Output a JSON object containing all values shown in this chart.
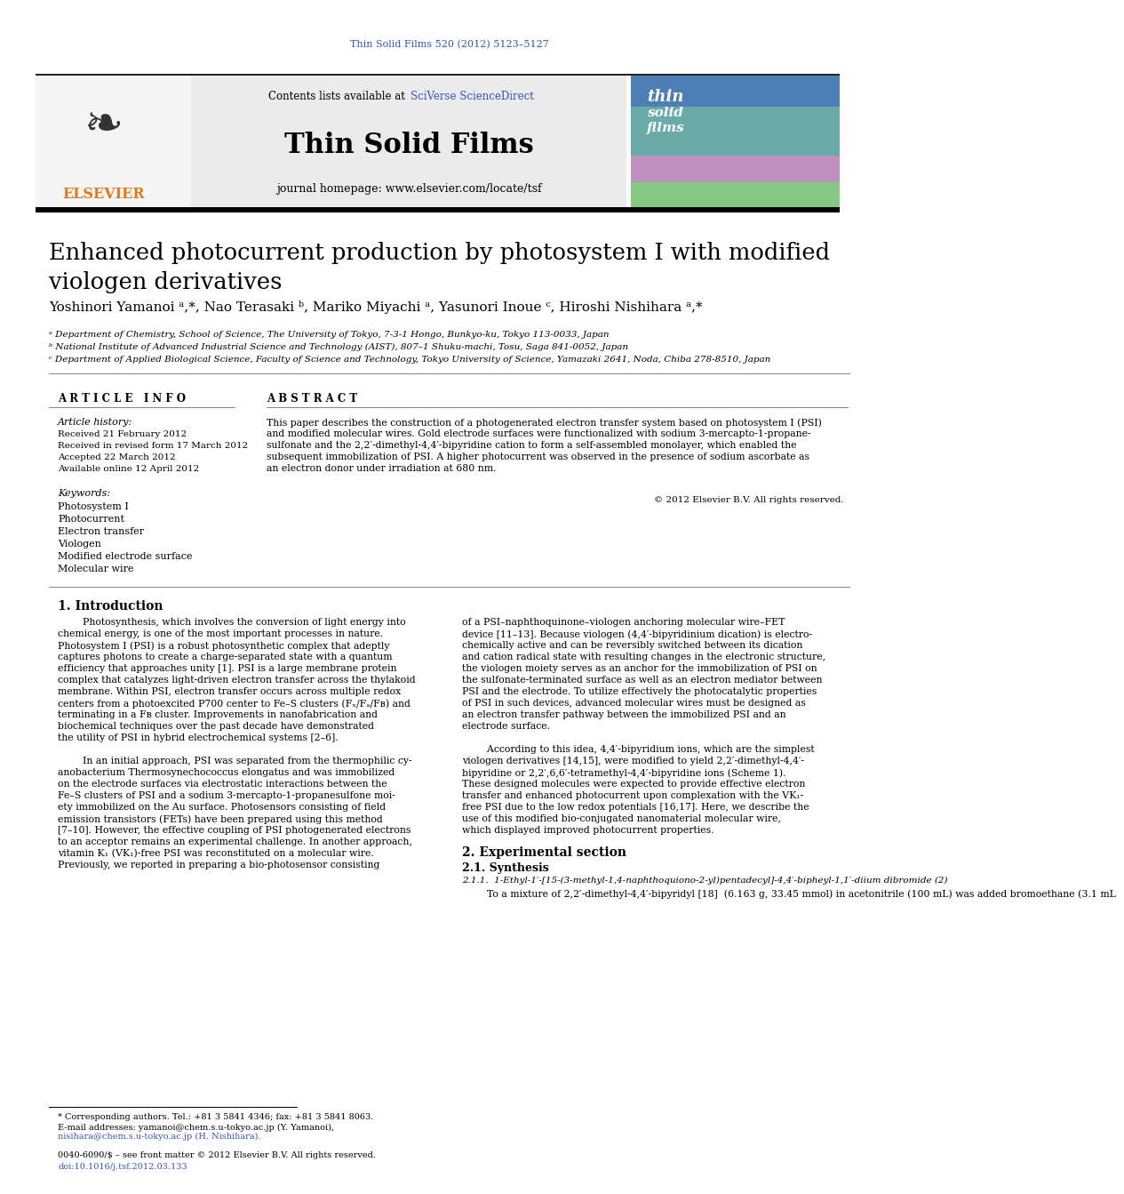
{
  "page_title": "Thin Solid Films 520 (2012) 5123–5127",
  "journal_name": "Thin Solid Films",
  "contents_line": "Contents lists available at SciVerse ScienceDirect",
  "homepage": "journal homepage: www.elsevier.com/locate/tsf",
  "elsevier_text": "ELSEVIER",
  "article_title": "Enhanced photocurrent production by photosystem I with modified\nviologen derivatives",
  "authors": "Yoshinori Yamanoi ᵃ,*, Nao Terasaki ᵇ, Mariko Miyachi ᵃ, Yasunori Inoue ᶜ, Hiroshi Nishihara ᵃ,*",
  "affil_a": "ᵃ Department of Chemistry, School of Science, The University of Tokyo, 7-3-1 Hongo, Bunkyo-ku, Tokyo 113-0033, Japan",
  "affil_b": "ᵇ National Institute of Advanced Industrial Science and Technology (AIST), 807–1 Shuku-machi, Tosu, Saga 841-0052, Japan",
  "affil_c": "ᶜ Department of Applied Biological Science, Faculty of Science and Technology, Tokyo University of Science, Yamazaki 2641, Noda, Chiba 278-8510, Japan",
  "section_article_info": "A R T I C L E   I N F O",
  "section_abstract": "A B S T R A C T",
  "article_history_label": "Article history:",
  "received": "Received 21 February 2012",
  "revised": "Received in revised form 17 March 2012",
  "accepted": "Accepted 22 March 2012",
  "available": "Available online 12 April 2012",
  "keywords_label": "Keywords:",
  "keywords": [
    "Photosystem I",
    "Photocurrent",
    "Electron transfer",
    "Viologen",
    "Modified electrode surface",
    "Molecular wire"
  ],
  "abstract_copyright": "© 2012 Elsevier B.V. All rights reserved.",
  "intro_heading": "1. Introduction",
  "exp_heading": "2. Experimental section",
  "synth_heading": "2.1. Synthesis",
  "synth_subheading": "2.1.1.  1-Ethyl-1′-[15-(3-methyl-1,4-naphthoquiono-2-yl)pentadecyl]-4,4′-bipheyl-1,1′-diium dibromide (2)",
  "synth_text": "        To a mixture of 2,2′-dimethyl-4,4′-bipyridyl [18]  (6.163 g, 33.45 mmol) in acetonitrile (100 mL) was added bromoethane (3.1 mL",
  "footnote_star": "* Corresponding authors. Tel.: +81 3 5841 4346; fax: +81 3 5841 8063.",
  "footnote_email1": "E-mail addresses: yamanoi@chem.s.u-tokyo.ac.jp (Y. Yamanoi),",
  "footnote_email2": "nisihara@chem.s.u-tokyo.ac.jp (H. Nishihara).",
  "footer_issn": "0040-6090/$ – see front matter © 2012 Elsevier B.V. All rights reserved.",
  "footer_doi": "doi:10.1016/j.tsf.2012.03.133",
  "bg_color": "#ffffff",
  "header_bg": "#e8e8e8",
  "blue_color": "#3355bb",
  "orange_color": "#e07820",
  "dark_line": "#222222",
  "gray_line": "#888888",
  "intro_left_lines": [
    "        Photosynthesis, which involves the conversion of light energy into",
    "chemical energy, is one of the most important processes in nature.",
    "Photosystem I (PSI) is a robust photosynthetic complex that adeptly",
    "captures photons to create a charge-separated state with a quantum",
    "efficiency that approaches unity [1]. PSI is a large membrane protein",
    "complex that catalyzes light-driven electron transfer across the thylakoid",
    "membrane. Within PSI, electron transfer occurs across multiple redox",
    "centers from a photoexcited P700 center to Fe–S clusters (Fₓ/Fₐ/Fʙ) and",
    "terminating in a Fʙ cluster. Improvements in nanofabrication and",
    "biochemical techniques over the past decade have demonstrated",
    "the utility of PSI in hybrid electrochemical systems [2–6].",
    "",
    "        In an initial approach, PSI was separated from the thermophilic cy-",
    "anobacterium Thermosynechococcus elongatus and was immobilized",
    "on the electrode surfaces via electrostatic interactions between the",
    "Fe–S clusters of PSI and a sodium 3-mercapto-1-propanesulfone moi-",
    "ety immobilized on the Au surface. Photosensors consisting of field",
    "emission transistors (FETs) have been prepared using this method",
    "[7–10]. However, the effective coupling of PSI photogenerated electrons",
    "to an acceptor remains an experimental challenge. In another approach,",
    "vitamin K₁ (VK₁)-free PSI was reconstituted on a molecular wire.",
    "Previously, we reported in preparing a bio-photosensor consisting"
  ],
  "intro_right_lines": [
    "of a PSI–naphthoquinone–viologen anchoring molecular wire–FET",
    "device [11–13]. Because viologen (4,4′-bipyridinium dication) is electro-",
    "chemically active and can be reversibly switched between its dication",
    "and cation radical state with resulting changes in the electronic structure,",
    "the viologen moiety serves as an anchor for the immobilization of PSI on",
    "the sulfonate-terminated surface as well as an electron mediator between",
    "PSI and the electrode. To utilize effectively the photocatalytic properties",
    "of PSI in such devices, advanced molecular wires must be designed as",
    "an electron transfer pathway between the immobilized PSI and an",
    "electrode surface.",
    "",
    "        According to this idea, 4,4′-bipyridium ions, which are the simplest",
    "viologen derivatives [14,15], were modified to yield 2,2′-dimethyl-4,4′-",
    "bipyridine or 2,2′,6,6′-tetramethyl-4,4′-bipyridine ions (Scheme 1).",
    "These designed molecules were expected to provide effective electron",
    "transfer and enhanced photocurrent upon complexation with the VK₁-",
    "free PSI due to the low redox potentials [16,17]. Here, we describe the",
    "use of this modified bio-conjugated nanomaterial molecular wire,",
    "which displayed improved photocurrent properties."
  ],
  "abstract_lines": [
    "This paper describes the construction of a photogenerated electron transfer system based on photosystem I (PSI)",
    "and modified molecular wires. Gold electrode surfaces were functionalized with sodium 3-mercapto-1-propane-",
    "sulfonate and the 2,2′-dimethyl-4,4′-bipyridine cation to form a self-assembled monolayer, which enabled the",
    "subsequent immobilization of PSI. A higher photocurrent was observed in the presence of sodium ascorbate as",
    "an electron donor under irradiation at 680 nm."
  ]
}
